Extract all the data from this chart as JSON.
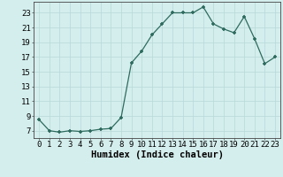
{
  "x": [
    0,
    1,
    2,
    3,
    4,
    5,
    6,
    7,
    8,
    9,
    10,
    11,
    12,
    13,
    14,
    15,
    16,
    17,
    18,
    19,
    20,
    21,
    22,
    23
  ],
  "y": [
    8.5,
    7.0,
    6.8,
    7.0,
    6.9,
    7.0,
    7.2,
    7.3,
    8.8,
    16.2,
    17.8,
    20.0,
    21.5,
    23.0,
    23.0,
    23.0,
    23.8,
    21.5,
    20.8,
    20.3,
    22.5,
    19.5,
    16.1,
    17.0
  ],
  "line_color": "#2e6b5e",
  "marker": "+",
  "marker_size": 3.5,
  "background_color": "#d4eeed",
  "grid_color": "#b8d8d8",
  "xlabel": "Humidex (Indice chaleur)",
  "xlabel_fontsize": 7.5,
  "ylabel_ticks": [
    7,
    9,
    11,
    13,
    15,
    17,
    19,
    21,
    23
  ],
  "xlim": [
    -0.5,
    23.5
  ],
  "ylim": [
    6.0,
    24.5
  ],
  "tick_fontsize": 6.5
}
